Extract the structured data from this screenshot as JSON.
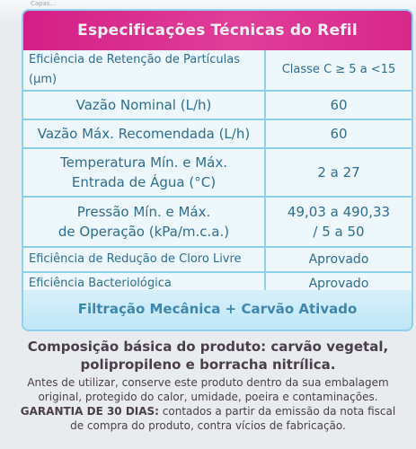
{
  "top_text": "Capas...",
  "title": "Especificações Técnicas do Refil",
  "specs": [
    {
      "label": "Eficiência de Retenção de Partículas (µm)",
      "value": "Classe C  ≥ 5 a <15"
    },
    {
      "label": "Vazão Nominal (L/h)",
      "value": "60"
    },
    {
      "label": "Vazão Máx. Recomendada (L/h)",
      "value": "60"
    },
    {
      "label_line1": "Temperatura Mín. e Máx.",
      "label_line2": "Entrada de Água (°C)",
      "value": "2 a 27"
    },
    {
      "label_line1": "Pressão Mín. e Máx.",
      "label_line2": "de Operação (kPa/m.c.a.)",
      "value_line1": "49,03 a 490,33",
      "value_line2": "/ 5 a 50"
    },
    {
      "label": "Eficiência de Redução de Cloro Livre",
      "value": "Aprovado"
    },
    {
      "label": "Eficiência Bacteriológica",
      "value": "Aprovado"
    }
  ],
  "footer": "Filtração Mecânica + Carvão Ativado",
  "composition": {
    "line1": "Composição básica do produto: carvão vegetal,",
    "line2": "polipropileno e borracha nitrílica."
  },
  "notes": {
    "line1": "Antes de utilizar, conserve este produto dentro da sua embalagem",
    "line2": "original, protegido do calor, umidade, poeira e contaminações.",
    "guarantee_bold": "GARANTIA DE 30 DIAS:",
    "guarantee_rest": " contados a partir da emissão da nota fiscal",
    "line4": "de compra do produto, contra vícios de fabricação."
  },
  "colors": {
    "header_magenta": "#d41f86",
    "border_blue": "#8fd0ee",
    "text_blue": "#2f6f92",
    "footer_blue": "#bfe6f7",
    "body_text": "#4a3e4b"
  }
}
